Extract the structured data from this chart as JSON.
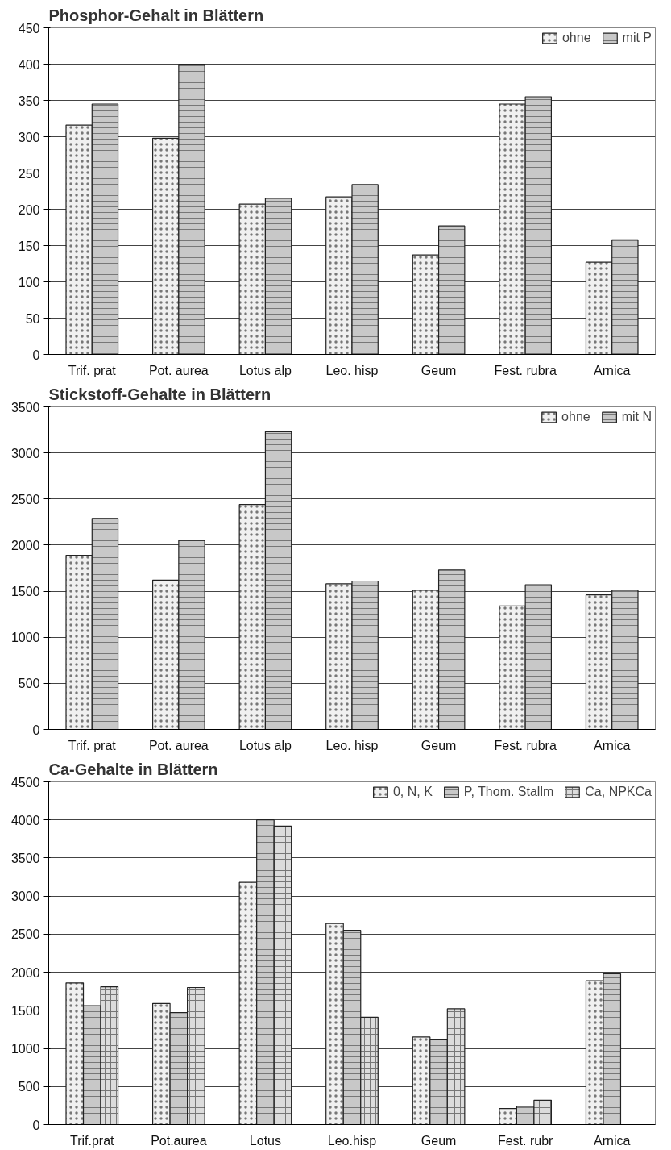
{
  "chart_data": [
    {
      "type": "bar",
      "title": "Phosphor-Gehalt in Blättern",
      "categories": [
        "Trif. prat",
        "Pot. aurea",
        "Lotus alp",
        "Leo. hisp",
        "Geum",
        "Fest. rubra",
        "Arnica"
      ],
      "series": [
        {
          "name": "ohne",
          "color": "#f0f0f0",
          "values": [
            316,
            298,
            207,
            217,
            137,
            345,
            127
          ]
        },
        {
          "name": "mit P",
          "color": "#c8c8c8",
          "values": [
            345,
            400,
            215,
            234,
            177,
            355,
            158
          ]
        }
      ],
      "ylim": [
        0,
        450
      ],
      "yticks": [
        0,
        50,
        100,
        150,
        200,
        250,
        300,
        350,
        400,
        450
      ],
      "grid": "y",
      "legend": "top right"
    },
    {
      "type": "bar",
      "title": "Stickstoff-Gehalte in Blättern",
      "categories": [
        "Trif. prat",
        "Pot. aurea",
        "Lotus alp",
        "Leo. hisp",
        "Geum",
        "Fest. rubra",
        "Arnica"
      ],
      "series": [
        {
          "name": "ohne",
          "color": "#f0f0f0",
          "values": [
            1890,
            1620,
            2440,
            1580,
            1510,
            1340,
            1460
          ]
        },
        {
          "name": "mit N",
          "color": "#c8c8c8",
          "values": [
            2290,
            2050,
            3230,
            1610,
            1730,
            1570,
            1510
          ]
        }
      ],
      "ylim": [
        0,
        3500
      ],
      "yticks": [
        0,
        500,
        1000,
        1500,
        2000,
        2500,
        3000,
        3500
      ],
      "grid": "y",
      "legend": "top right"
    },
    {
      "type": "bar",
      "title": "Ca-Gehalte in Blättern",
      "categories": [
        "Trif.prat",
        "Pot.aurea",
        "Lotus",
        "Leo.hisp",
        "Geum",
        "Fest. rubr",
        "Arnica"
      ],
      "series": [
        {
          "name": "0, N, K",
          "color": "#f0f0f0",
          "values": [
            1860,
            1590,
            3180,
            2640,
            1150,
            210,
            1890
          ]
        },
        {
          "name": "P, Thom. Stallm",
          "color": "#c8c8c8",
          "values": [
            1560,
            1470,
            4000,
            2550,
            1120,
            240,
            1980
          ]
        },
        {
          "name": "Ca, NPKCa",
          "color": "#dcdcdc",
          "values": [
            1810,
            1800,
            3920,
            1410,
            1520,
            320,
            null
          ]
        }
      ],
      "ylim": [
        0,
        4500
      ],
      "yticks": [
        0,
        500,
        1000,
        1500,
        2000,
        2500,
        3000,
        3500,
        4000,
        4500
      ],
      "grid": "y",
      "legend": "top right"
    }
  ]
}
